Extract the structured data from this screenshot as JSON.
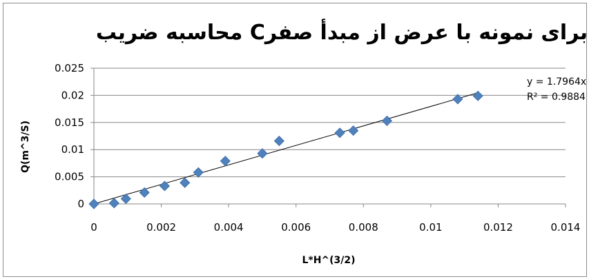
{
  "chart_data": {
    "type": "scatter",
    "title": "محاسبه ضریب Cبرای نمونه با عرض از مبدأ صفر",
    "xlabel": "L*H^(3/2)",
    "ylabel": "Q(m^3/S)",
    "xlim": [
      0,
      0.014
    ],
    "ylim": [
      0,
      0.025
    ],
    "xticks": [
      "0",
      "0.002",
      "0.004",
      "0.006",
      "0.008",
      "0.01",
      "0.012",
      "0.014"
    ],
    "yticks": [
      "0",
      "0.005",
      "0.01",
      "0.015",
      "0.02",
      "0.025"
    ],
    "grid": "horizontal",
    "marker_color": "#4f81bd",
    "trendline_color": "#000000",
    "series": [
      {
        "x": [
          0,
          0.0006,
          0.00095,
          0.0015,
          0.0021,
          0.0027,
          0.0031,
          0.0039,
          0.005,
          0.0055,
          0.0073,
          0.0077,
          0.0087,
          0.0108,
          0.0114
        ],
        "y": [
          0,
          0.00015,
          0.00095,
          0.0021,
          0.0033,
          0.0039,
          0.0058,
          0.0079,
          0.0093,
          0.0116,
          0.0131,
          0.0135,
          0.0153,
          0.0193,
          0.0199
        ]
      }
    ],
    "trendline": {
      "slope": 1.7964,
      "x_range": [
        0,
        0.0114
      ],
      "equation": "y = 1.7964x",
      "r_squared": "R² = 0.9884"
    }
  }
}
